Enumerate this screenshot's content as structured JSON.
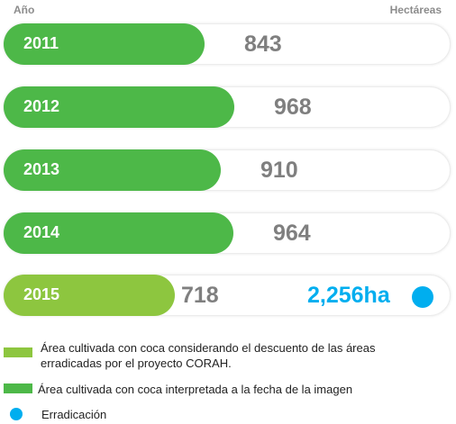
{
  "header": {
    "year_label": "Año",
    "unit_label": "Hectáreas"
  },
  "colors": {
    "dark_green": "#4db848",
    "light_green": "#8dc63f",
    "erradicacion": "#00aeef"
  },
  "chart_data": {
    "type": "bar",
    "orientation": "horizontal",
    "categories": [
      "2011",
      "2012",
      "2013",
      "2014",
      "2015"
    ],
    "series": [
      {
        "name": "Área cultivada con coca interpretada a la fecha de la imagen",
        "values": [
          843,
          968,
          910,
          964,
          null
        ]
      },
      {
        "name": "Área cultivada con coca considerando el descuento de las áreas erradicadas por el proyecto CORAH.",
        "values": [
          null,
          null,
          null,
          null,
          718
        ]
      },
      {
        "name": "Erradicación",
        "values": [
          null,
          null,
          null,
          null,
          2256
        ]
      }
    ],
    "value_labels": [
      "843",
      "968",
      "910",
      "964",
      "718"
    ],
    "erradicacion_label": "2,256ha"
  },
  "legend": {
    "item1": "Área cultivada con coca considerando el descuento de las áreas erradicadas por el proyecto CORAH.",
    "item2": "Área cultivada con coca interpretada a la fecha de la imagen",
    "item3": "Erradicación"
  }
}
